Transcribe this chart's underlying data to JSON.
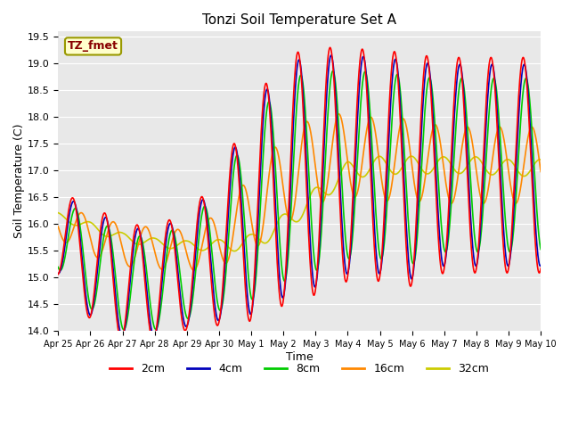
{
  "title": "Tonzi Soil Temperature Set A",
  "xlabel": "Time",
  "ylabel": "Soil Temperature (C)",
  "ylim": [
    14.0,
    19.6
  ],
  "yticks": [
    14.0,
    14.5,
    15.0,
    15.5,
    16.0,
    16.5,
    17.0,
    17.5,
    18.0,
    18.5,
    19.0,
    19.5
  ],
  "xtick_labels": [
    "Apr 25",
    "Apr 26",
    "Apr 27",
    "Apr 28",
    "Apr 29",
    "Apr 30",
    "May 1",
    "May 2",
    "May 3",
    "May 4",
    "May 5",
    "May 6",
    "May 7",
    "May 8",
    "May 9",
    "May 10"
  ],
  "legend_labels": [
    "2cm",
    "4cm",
    "8cm",
    "16cm",
    "32cm"
  ],
  "line_colors": [
    "#ff0000",
    "#0000bb",
    "#00cc00",
    "#ff8800",
    "#cccc00"
  ],
  "bg_color": "#e8e8e8",
  "annotation_text": "TZ_fmet",
  "annotation_bg": "#ffffcc",
  "annotation_border": "#999900",
  "annotation_fg": "#880000"
}
